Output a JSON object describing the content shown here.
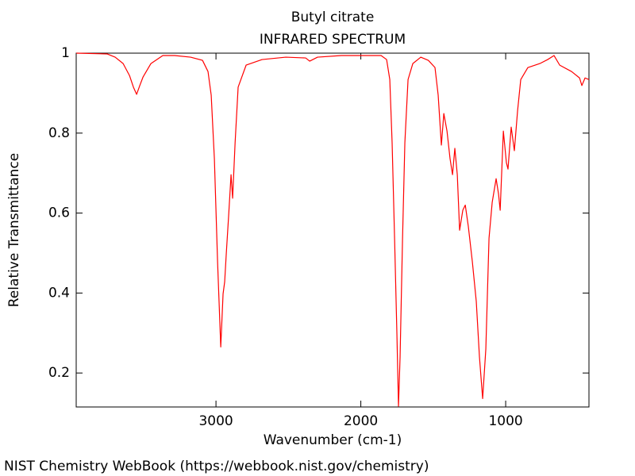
{
  "chart_data": {
    "type": "line",
    "title": "Butyl citrate",
    "subtitle": "INFRARED SPECTRUM",
    "x_label": "Wavenumber (cm-1)",
    "y_label": "Relative Transmittance",
    "source": "NIST Chemistry WebBook (https://webbook.nist.gov/chemistry)",
    "color": "#ff0000",
    "xlim": [
      3965,
      425
    ],
    "ylim": [
      0.115,
      1
    ],
    "xticks": [
      3000,
      2000,
      1000
    ],
    "yticks": [
      0.2,
      0.4,
      0.6,
      0.8,
      1
    ],
    "x": [
      3964,
      3750,
      3696,
      3641,
      3597,
      3570,
      3548,
      3526,
      3504,
      3449,
      3367,
      3285,
      3175,
      3093,
      3055,
      3033,
      3011,
      2989,
      2967,
      2951,
      2940,
      2929,
      2912,
      2896,
      2885,
      2868,
      2847,
      2792,
      2682,
      2518,
      2381,
      2353,
      2299,
      2134,
      1860,
      1822,
      1800,
      1784,
      1767,
      1751,
      1740,
      1729,
      1712,
      1696,
      1674,
      1641,
      1586,
      1534,
      1488,
      1466,
      1444,
      1427,
      1405,
      1384,
      1367,
      1351,
      1334,
      1318,
      1296,
      1279,
      1258,
      1230,
      1203,
      1181,
      1159,
      1137,
      1115,
      1093,
      1066,
      1049,
      1038,
      1016,
      995,
      984,
      962,
      940,
      918,
      896,
      847,
      764,
      710,
      666,
      627,
      545,
      490,
      474,
      452,
      425
    ],
    "values": [
      1.0,
      0.998,
      0.99,
      0.974,
      0.944,
      0.915,
      0.897,
      0.919,
      0.94,
      0.974,
      0.994,
      0.994,
      0.99,
      0.982,
      0.954,
      0.895,
      0.736,
      0.478,
      0.265,
      0.398,
      0.428,
      0.498,
      0.597,
      0.696,
      0.637,
      0.776,
      0.915,
      0.97,
      0.984,
      0.99,
      0.988,
      0.98,
      0.99,
      0.994,
      0.994,
      0.984,
      0.934,
      0.776,
      0.537,
      0.299,
      0.117,
      0.24,
      0.537,
      0.776,
      0.934,
      0.974,
      0.99,
      0.982,
      0.964,
      0.895,
      0.77,
      0.849,
      0.805,
      0.736,
      0.696,
      0.762,
      0.696,
      0.557,
      0.607,
      0.62,
      0.567,
      0.478,
      0.379,
      0.24,
      0.136,
      0.26,
      0.537,
      0.627,
      0.686,
      0.647,
      0.607,
      0.805,
      0.726,
      0.71,
      0.815,
      0.756,
      0.855,
      0.934,
      0.964,
      0.974,
      0.984,
      0.994,
      0.97,
      0.954,
      0.938,
      0.919,
      0.938,
      0.934
    ]
  }
}
